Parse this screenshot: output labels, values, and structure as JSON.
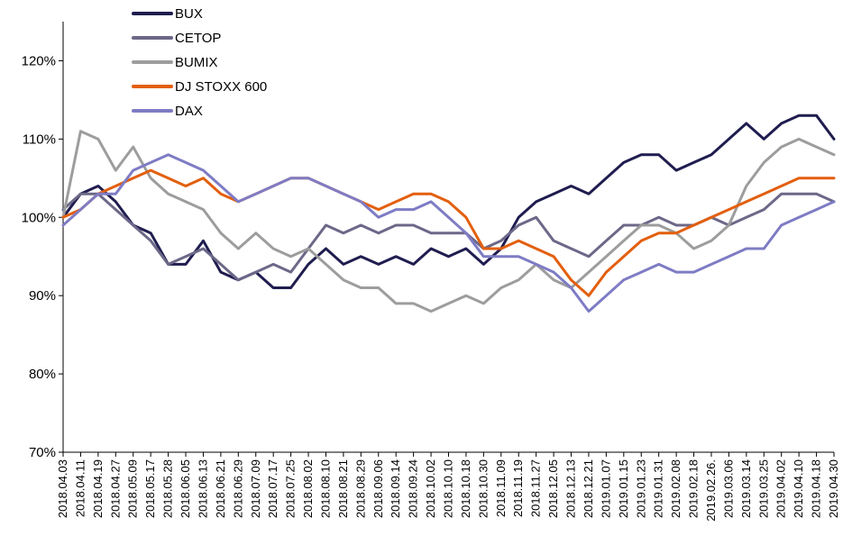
{
  "chart_data": {
    "type": "line",
    "x_tick_labels": [
      "2018.04.03",
      "2018.04.11",
      "2018.04.19",
      "2018.04.27",
      "2018.05.09",
      "2018.05.17",
      "2018.05.28",
      "2018.06.05",
      "2018.06.13",
      "2018.06.21",
      "2018.06.29",
      "2018.07.09",
      "2018.07.17",
      "2018.07.25",
      "2018.08.02",
      "2018.08.10",
      "2018.08.21",
      "2018.08.29",
      "2018.09.06",
      "2018.09.14",
      "2018.09.24",
      "2018.10.02",
      "2018.10.10",
      "2018.10.18",
      "2018.10.30",
      "2018.11.09",
      "2018.11.19",
      "2018.11.27",
      "2018.12.05",
      "2018.12.13",
      "2018.12.21",
      "2019.01.07",
      "2019.01.15",
      "2019.01.23",
      "2019.01.31",
      "2019.02.08",
      "2019.02.18",
      "2019.02.26.",
      "2019.03.06",
      "2019.03.14",
      "2019.03.25",
      "2019.04.02",
      "2019.04.10",
      "2019.04.18",
      "2019.04.30"
    ],
    "y_ticks": [
      70,
      80,
      90,
      100,
      110,
      120
    ],
    "y_tick_labels": [
      "70%",
      "80%",
      "90%",
      "100%",
      "110%",
      "120%"
    ],
    "ylim": [
      70,
      125
    ],
    "series": [
      {
        "name": "BUX",
        "color": "#1f1d4f",
        "values": [
          100,
          103,
          104,
          102,
          99,
          98,
          94,
          94,
          97,
          93,
          92,
          93,
          91,
          91,
          94,
          96,
          94,
          95,
          94,
          95,
          94,
          96,
          95,
          96,
          94,
          96,
          100,
          102,
          103,
          104,
          103,
          105,
          107,
          108,
          108,
          106,
          107,
          108,
          110,
          112,
          110,
          112,
          113,
          113,
          110
        ]
      },
      {
        "name": "CETOP",
        "color": "#6c6888",
        "values": [
          101,
          103,
          103,
          101,
          99,
          97,
          94,
          95,
          96,
          94,
          92,
          93,
          94,
          93,
          96,
          99,
          98,
          99,
          98,
          99,
          99,
          98,
          98,
          98,
          96,
          97,
          99,
          100,
          97,
          96,
          95,
          97,
          99,
          99,
          100,
          99,
          99,
          100,
          99,
          100,
          101,
          103,
          103,
          103,
          102
        ]
      },
      {
        "name": "BUMIX",
        "color": "#9d9d9d",
        "values": [
          100,
          111,
          110,
          106,
          109,
          105,
          103,
          102,
          101,
          98,
          96,
          98,
          96,
          95,
          96,
          94,
          92,
          91,
          91,
          89,
          89,
          88,
          89,
          90,
          89,
          91,
          92,
          94,
          92,
          91,
          93,
          95,
          97,
          99,
          99,
          98,
          96,
          97,
          99,
          104,
          107,
          109,
          110,
          109,
          108
        ]
      },
      {
        "name": "DJ STOXX 600",
        "color": "#e35f0e",
        "values": [
          100,
          101,
          103,
          104,
          105,
          106,
          105,
          104,
          105,
          103,
          102,
          103,
          104,
          105,
          105,
          104,
          103,
          102,
          101,
          102,
          103,
          103,
          102,
          100,
          96,
          96,
          97,
          96,
          95,
          92,
          90,
          93,
          95,
          97,
          98,
          98,
          99,
          100,
          101,
          102,
          103,
          104,
          105,
          105,
          105
        ]
      },
      {
        "name": "DAX",
        "color": "#7e7cc4",
        "values": [
          99,
          101,
          103,
          103,
          106,
          107,
          108,
          107,
          106,
          104,
          102,
          103,
          104,
          105,
          105,
          104,
          103,
          102,
          100,
          101,
          101,
          102,
          100,
          98,
          95,
          95,
          95,
          94,
          93,
          91,
          88,
          90,
          92,
          93,
          94,
          93,
          93,
          94,
          95,
          96,
          96,
          99,
          100,
          101,
          102
        ]
      }
    ]
  }
}
